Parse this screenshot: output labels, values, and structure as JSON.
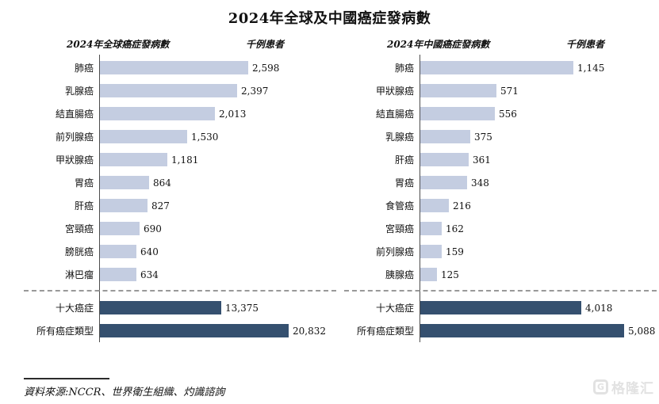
{
  "page": {
    "title": "2024年全球及中國癌症發病數",
    "source": "資料來源:NCCR、世界衛生組織、灼識諮詢"
  },
  "watermark": {
    "text": "格隆汇",
    "icon": "gelonghui-g-logo"
  },
  "chart_data": [
    {
      "type": "bar",
      "orientation": "horizontal",
      "title": "2024年全球癌症發病數",
      "unit_label": "千例患者",
      "categories": [
        "肺癌",
        "乳腺癌",
        "結直腸癌",
        "前列腺癌",
        "甲狀腺癌",
        "胃癌",
        "肝癌",
        "宮頸癌",
        "膀胱癌",
        "淋巴瘤",
        "十大癌症",
        "所有癌症類型"
      ],
      "values": [
        2598,
        2397,
        2013,
        1530,
        1181,
        864,
        827,
        690,
        640,
        634,
        13375,
        20832
      ],
      "value_labels": [
        "2,598",
        "2,397",
        "2,013",
        "1,530",
        "1,181",
        "864",
        "827",
        "690",
        "640",
        "634",
        "13,375",
        "20,832"
      ],
      "totals_start_index": 10,
      "colors": {
        "top10_bar": "#c4cde1",
        "totals_bar": "#35506f"
      },
      "legend": "none",
      "grid": "off"
    },
    {
      "type": "bar",
      "orientation": "horizontal",
      "title": "2024年中國癌症發病數",
      "unit_label": "千例患者",
      "categories": [
        "肺癌",
        "甲狀腺癌",
        "結直腸癌",
        "乳腺癌",
        "肝癌",
        "胃癌",
        "食管癌",
        "宮頸癌",
        "前列腺癌",
        "胰腺癌",
        "十大癌症",
        "所有癌症類型"
      ],
      "values": [
        1145,
        571,
        556,
        375,
        361,
        348,
        216,
        162,
        159,
        125,
        4018,
        5088
      ],
      "value_labels": [
        "1,145",
        "571",
        "556",
        "375",
        "361",
        "348",
        "216",
        "162",
        "159",
        "125",
        "4,018",
        "5,088"
      ],
      "totals_start_index": 10,
      "colors": {
        "top10_bar": "#c4cde1",
        "totals_bar": "#35506f"
      },
      "legend": "none",
      "grid": "off"
    }
  ]
}
